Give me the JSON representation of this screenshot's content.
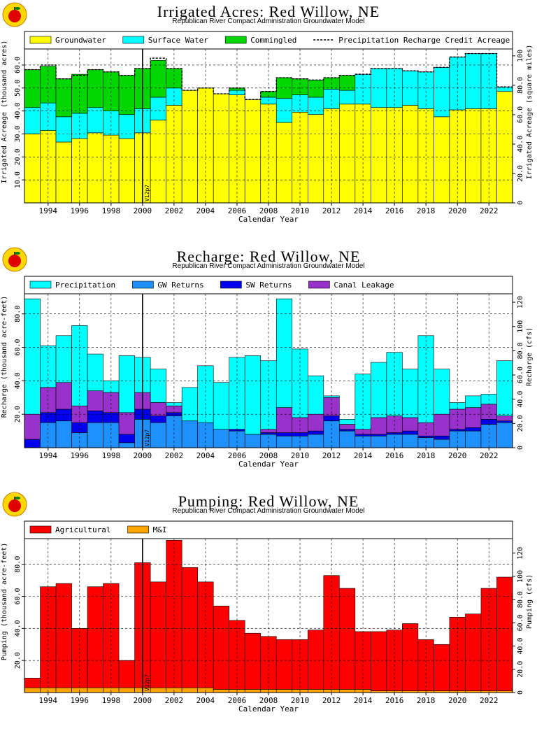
{
  "chart_data": [
    {
      "type": "bar",
      "title": "Irrigated Acres: Red Willow, NE",
      "subtitle": "Republican River Compact Administration Groundwater Model",
      "xlabel": "Calendar Year",
      "ylabel": "Irrigated Acreage (thousand acres)",
      "y2label": "Irrigated Acreage (square miles)",
      "ylim": [
        0,
        67
      ],
      "yticks": [
        10,
        20,
        30,
        40,
        50,
        60
      ],
      "ytick_labels": [
        "10.0",
        "20.0",
        "30.0",
        "40.0",
        "50.0",
        "60.0"
      ],
      "y2ticks": [
        0,
        20,
        40,
        60,
        80,
        100
      ],
      "y2tick_labels": [
        "0",
        "20.0",
        "40.0",
        "60.0",
        "80.0",
        "100"
      ],
      "y2_per_y": 1.5625,
      "xlim": [
        1993,
        2024
      ],
      "xticks": [
        1994,
        1996,
        1998,
        2000,
        2002,
        2004,
        2006,
        2008,
        2010,
        2012,
        2014,
        2016,
        2018,
        2020,
        2022
      ],
      "marker": {
        "year": 2000.5,
        "label": "V12p7"
      },
      "legend_placement": "top",
      "grid": true,
      "stacked": true,
      "categories": [
        1993,
        1994,
        1995,
        1996,
        1997,
        1998,
        1999,
        2000,
        2001,
        2002,
        2003,
        2004,
        2005,
        2006,
        2007,
        2008,
        2009,
        2010,
        2011,
        2012,
        2013,
        2014,
        2015,
        2016,
        2017,
        2018,
        2019,
        2020,
        2021,
        2022,
        2023
      ],
      "series": [
        {
          "name": "Groundwater",
          "color": "#ffff00",
          "values": [
            30,
            31.5,
            26.5,
            28,
            30.5,
            29.5,
            28,
            30.5,
            36,
            42.5,
            49,
            50,
            47.5,
            47,
            45,
            43,
            35,
            39.5,
            38.5,
            41,
            43,
            43,
            41.5,
            41.5,
            42.5,
            41,
            37.5,
            40.5,
            41,
            41,
            48.5
          ]
        },
        {
          "name": "Surface Water",
          "color": "#00ffff",
          "values": [
            11.5,
            12,
            11,
            11,
            11,
            10.5,
            10.5,
            10.5,
            10,
            7.5,
            0,
            0,
            0,
            2,
            0,
            3,
            10.5,
            7.5,
            7.5,
            8.5,
            6,
            13,
            17,
            17,
            15,
            16,
            21.5,
            23,
            24,
            24,
            2
          ]
        },
        {
          "name": "Commingled",
          "color": "#00d600",
          "values": [
            16.5,
            16,
            16.5,
            17,
            16.5,
            17,
            17,
            17.5,
            16,
            8.5,
            0,
            0,
            0,
            1,
            0,
            2.5,
            9,
            7,
            7.5,
            5,
            6.5,
            0,
            0,
            0,
            0,
            0,
            0,
            0,
            0,
            0,
            0
          ]
        }
      ],
      "line_series": {
        "name": "Precipitation Recharge Credit Acreage",
        "style": "dashed",
        "values": [
          58,
          60,
          54,
          55.5,
          58,
          57,
          55.5,
          58.5,
          63,
          58.5,
          49,
          50,
          47.5,
          50,
          45,
          48.5,
          54.5,
          54,
          53.5,
          54.5,
          55.5,
          56,
          58.5,
          58.5,
          57.5,
          57,
          59,
          63.5,
          65,
          65,
          50.5
        ]
      }
    },
    {
      "type": "bar",
      "title": "Recharge: Red Willow, NE",
      "subtitle": "Republican River Compact Administration Groundwater Model",
      "xlabel": "Calendar Year",
      "ylabel": "Recharge (thousand acre-feet)",
      "y2label": "Recharge (cfs)",
      "ylim": [
        0,
        92
      ],
      "yticks": [
        20,
        40,
        60,
        80
      ],
      "ytick_labels": [
        "20.0",
        "40.0",
        "60.0",
        "80.0"
      ],
      "y2ticks": [
        0,
        20,
        40,
        60,
        80,
        100,
        120
      ],
      "y2tick_labels": [
        "0",
        "20.0",
        "40.0",
        "60.0",
        "80.0",
        "100",
        "120"
      ],
      "y2_per_y": 1.38,
      "xlim": [
        1993,
        2024
      ],
      "xticks": [
        1994,
        1996,
        1998,
        2000,
        2002,
        2004,
        2006,
        2008,
        2010,
        2012,
        2014,
        2016,
        2018,
        2020,
        2022
      ],
      "marker": {
        "year": 2000.5,
        "label": "V12p7"
      },
      "legend_placement": "top",
      "grid": true,
      "stacked": true,
      "categories": [
        1993,
        1994,
        1995,
        1996,
        1997,
        1998,
        1999,
        2000,
        2001,
        2002,
        2003,
        2004,
        2005,
        2006,
        2007,
        2008,
        2009,
        2010,
        2011,
        2012,
        2013,
        2014,
        2015,
        2016,
        2017,
        2018,
        2019,
        2020,
        2021,
        2022,
        2023
      ],
      "series": [
        {
          "name": "GW Returns",
          "color": "#1e90ff",
          "values": [
            0,
            15,
            16,
            9,
            15,
            15,
            3,
            17,
            15,
            19,
            16,
            15,
            11,
            10,
            8,
            8,
            7,
            7,
            8,
            16,
            10,
            7,
            7,
            8,
            8,
            6,
            5,
            10,
            10,
            14,
            15
          ]
        },
        {
          "name": "SW Returns",
          "color": "#0000ee",
          "values": [
            5,
            6,
            7,
            6,
            7,
            6,
            5,
            6,
            4,
            2,
            0,
            0,
            0,
            1,
            0,
            1,
            2,
            2,
            2,
            3,
            1,
            1,
            1,
            1,
            2,
            1,
            2,
            1,
            2,
            3,
            1
          ]
        },
        {
          "name": "Canal Leakage",
          "color": "#9932cc",
          "values": [
            15,
            15,
            16,
            10,
            12,
            12,
            13,
            10,
            8,
            4,
            0,
            0,
            0,
            0,
            0,
            2,
            15,
            9,
            10,
            11,
            3,
            3,
            10,
            10,
            8,
            8,
            13,
            12,
            12,
            9,
            3
          ]
        },
        {
          "name": "Precipitation",
          "color": "#00ffff",
          "values": [
            69,
            25,
            28,
            48,
            22,
            7,
            34,
            21,
            20,
            2,
            20,
            34,
            28,
            43,
            47,
            41,
            65,
            41,
            23,
            1,
            3,
            33,
            33,
            38,
            29,
            52,
            27,
            4,
            7,
            6,
            33
          ]
        }
      ]
    },
    {
      "type": "bar",
      "title": "Pumping: Red Willow, NE",
      "subtitle": "Republican River Compact Administration Groundwater Model",
      "xlabel": "Calendar Year",
      "ylabel": "Pumping (thousand acre-feet)",
      "y2label": "Pumping (cfs)",
      "ylim": [
        0,
        96
      ],
      "yticks": [
        20,
        40,
        60,
        80
      ],
      "ytick_labels": [
        "20.0",
        "40.0",
        "60.0",
        "80.0"
      ],
      "y2ticks": [
        0,
        20,
        40,
        60,
        80,
        100,
        120
      ],
      "y2tick_labels": [
        "0",
        "20.0",
        "40.0",
        "60.0",
        "80.0",
        "100",
        "120"
      ],
      "y2_per_y": 1.38,
      "xlim": [
        1993,
        2024
      ],
      "xticks": [
        1994,
        1996,
        1998,
        2000,
        2002,
        2004,
        2006,
        2008,
        2010,
        2012,
        2014,
        2016,
        2018,
        2020,
        2022
      ],
      "marker": {
        "year": 2000.5,
        "label": "V12p7"
      },
      "legend_placement": "top",
      "grid": true,
      "stacked": true,
      "categories": [
        1993,
        1994,
        1995,
        1996,
        1997,
        1998,
        1999,
        2000,
        2001,
        2002,
        2003,
        2004,
        2005,
        2006,
        2007,
        2008,
        2009,
        2010,
        2011,
        2012,
        2013,
        2014,
        2015,
        2016,
        2017,
        2018,
        2019,
        2020,
        2021,
        2022,
        2023
      ],
      "series": [
        {
          "name": "M&I",
          "color": "#ffa500",
          "values": [
            3,
            3,
            3,
            3,
            3,
            3,
            3,
            3,
            3,
            3,
            3,
            3,
            2,
            2,
            2,
            2,
            2,
            2,
            2,
            2,
            2,
            2,
            1,
            1,
            1,
            1,
            1,
            1,
            1,
            1,
            1
          ]
        },
        {
          "name": "Agricultural",
          "color": "#ff0000",
          "values": [
            6,
            63,
            65,
            37,
            63,
            65,
            17,
            78,
            66,
            92,
            75,
            66,
            52,
            43,
            35,
            33,
            31,
            31,
            37,
            71,
            63,
            36,
            37,
            38,
            42,
            32,
            29,
            46,
            48,
            64,
            71
          ]
        }
      ]
    }
  ]
}
